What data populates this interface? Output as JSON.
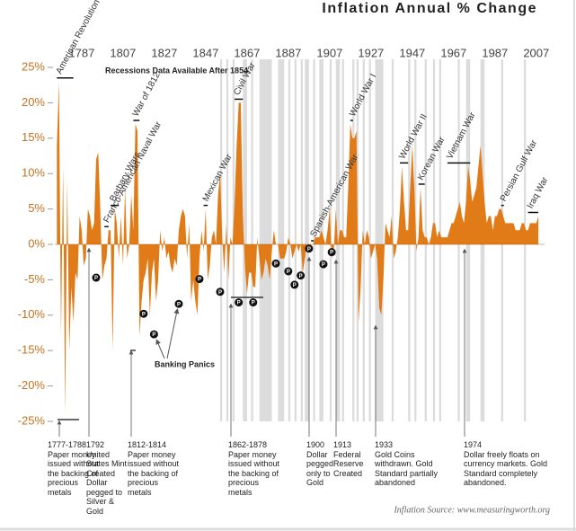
{
  "chart_data": {
    "type": "area",
    "title": "Inflation Annual % Change",
    "annotation": "Recessions Data Available After 1854",
    "source": "Inflation Source: www.measuringworth.org",
    "color": "#e07b17",
    "xlim": [
      1774,
      2011
    ],
    "ylim": [
      -25,
      25
    ],
    "xticks": [
      1787,
      1807,
      1827,
      1847,
      1867,
      1887,
      1907,
      1927,
      1947,
      1967,
      1987,
      2007
    ],
    "yticks": [
      {
        "value": 25,
        "label": "25%"
      },
      {
        "value": 20,
        "label": "20%"
      },
      {
        "value": 15,
        "label": "15%"
      },
      {
        "value": 10,
        "label": "10%"
      },
      {
        "value": 5,
        "label": "5%"
      },
      {
        "value": 0,
        "label": "0%"
      },
      {
        "value": -5,
        "label": "-5%"
      },
      {
        "value": -10,
        "label": "-10%"
      },
      {
        "value": -15,
        "label": "-15%"
      },
      {
        "value": -20,
        "label": "-20%"
      },
      {
        "value": -25,
        "label": "-25%"
      }
    ],
    "x": [
      1775,
      1776,
      1777,
      1778,
      1779,
      1780,
      1781,
      1782,
      1783,
      1784,
      1785,
      1786,
      1787,
      1788,
      1789,
      1790,
      1791,
      1792,
      1793,
      1794,
      1795,
      1796,
      1797,
      1798,
      1799,
      1800,
      1801,
      1802,
      1803,
      1804,
      1805,
      1806,
      1807,
      1808,
      1809,
      1810,
      1811,
      1812,
      1813,
      1814,
      1815,
      1816,
      1817,
      1818,
      1819,
      1820,
      1821,
      1822,
      1823,
      1824,
      1825,
      1826,
      1827,
      1828,
      1829,
      1830,
      1831,
      1832,
      1833,
      1834,
      1835,
      1836,
      1837,
      1838,
      1839,
      1840,
      1841,
      1842,
      1843,
      1844,
      1845,
      1846,
      1847,
      1848,
      1849,
      1850,
      1851,
      1852,
      1853,
      1854,
      1855,
      1856,
      1857,
      1858,
      1859,
      1860,
      1861,
      1862,
      1863,
      1864,
      1865,
      1866,
      1867,
      1868,
      1869,
      1870,
      1871,
      1872,
      1873,
      1874,
      1875,
      1876,
      1877,
      1878,
      1879,
      1880,
      1881,
      1882,
      1883,
      1884,
      1885,
      1886,
      1887,
      1888,
      1889,
      1890,
      1891,
      1892,
      1893,
      1894,
      1895,
      1896,
      1897,
      1898,
      1899,
      1900,
      1901,
      1902,
      1903,
      1904,
      1905,
      1906,
      1907,
      1908,
      1909,
      1910,
      1911,
      1912,
      1913,
      1914,
      1915,
      1916,
      1917,
      1918,
      1919,
      1920,
      1921,
      1922,
      1923,
      1924,
      1925,
      1926,
      1927,
      1928,
      1929,
      1930,
      1931,
      1932,
      1933,
      1934,
      1935,
      1936,
      1937,
      1938,
      1939,
      1940,
      1941,
      1942,
      1943,
      1944,
      1945,
      1946,
      1947,
      1948,
      1949,
      1950,
      1951,
      1952,
      1953,
      1954,
      1955,
      1956,
      1957,
      1958,
      1959,
      1960,
      1961,
      1962,
      1963,
      1964,
      1965,
      1966,
      1967,
      1968,
      1969,
      1970,
      1971,
      1972,
      1973,
      1974,
      1975,
      1976,
      1977,
      1978,
      1979,
      1980,
      1981,
      1982,
      1983,
      1984,
      1985,
      1986,
      1987,
      1988,
      1989,
      1990,
      1991,
      1992,
      1993,
      1994,
      1995,
      1996,
      1997,
      1998,
      1999,
      2000,
      2001,
      2002,
      2003,
      2004,
      2005,
      2006,
      2007,
      2008
    ],
    "values": [
      14,
      23,
      -13,
      11,
      -24,
      9,
      -15,
      -6,
      -11,
      -4,
      -5,
      4,
      2,
      -3,
      -2,
      5,
      4,
      2,
      3,
      12,
      13,
      5,
      -5,
      -3,
      -2,
      2,
      2,
      -15,
      5,
      3,
      -2,
      4,
      -3,
      8,
      -2,
      0,
      7,
      2,
      17,
      16,
      -13,
      -8,
      -5,
      -4,
      -2,
      -10,
      -4,
      -2,
      -8,
      -5,
      2,
      -1,
      1,
      -2,
      -1,
      -3,
      -4,
      -2,
      -3,
      2,
      4,
      5,
      4,
      -2,
      3,
      -8,
      -5,
      -8,
      -10,
      -2,
      2,
      -1,
      5,
      -5,
      -3,
      1,
      2,
      0,
      7,
      10,
      1,
      -4,
      3,
      -5,
      1,
      0,
      6,
      14,
      20,
      20,
      4,
      -3,
      -7,
      -4,
      -4,
      -6,
      -6,
      1,
      -2,
      -5,
      -4,
      -2,
      -3,
      -5,
      -1,
      2,
      0,
      0,
      -2,
      -2,
      -2,
      -1,
      1,
      0,
      -2,
      -1,
      0,
      -1,
      0,
      -4,
      -2,
      0,
      -1,
      0,
      0,
      1,
      1,
      1,
      2,
      1,
      0,
      2,
      5,
      -2,
      -1,
      5,
      0,
      2,
      2,
      1,
      1,
      8,
      17,
      15,
      15,
      16,
      -11,
      -6,
      2,
      0,
      2,
      1,
      -2,
      -1,
      0,
      -2,
      -9,
      -10,
      -5,
      3,
      2,
      1,
      4,
      -2,
      -1,
      1,
      5,
      11,
      6,
      2,
      2,
      8,
      14,
      8,
      -1,
      1,
      8,
      2,
      1,
      1,
      0,
      1,
      3,
      3,
      1,
      2,
      1,
      1,
      1,
      1,
      2,
      3,
      3,
      4,
      5,
      6,
      4,
      3,
      6,
      11,
      9,
      6,
      7,
      8,
      11,
      14,
      10,
      6,
      3,
      4,
      4,
      2,
      4,
      4,
      5,
      5,
      4,
      3,
      3,
      3,
      3,
      3,
      2,
      2,
      2,
      3,
      3,
      2,
      2,
      3,
      3,
      3,
      3,
      4
    ],
    "recessions": [
      [
        1854,
        1855
      ],
      [
        1857,
        1858
      ],
      [
        1860,
        1861
      ],
      [
        1865,
        1867
      ],
      [
        1869,
        1870
      ],
      [
        1873,
        1879
      ],
      [
        1882,
        1885
      ],
      [
        1887,
        1888
      ],
      [
        1890,
        1891
      ],
      [
        1893,
        1894
      ],
      [
        1895,
        1897
      ],
      [
        1899,
        1900
      ],
      [
        1902,
        1904
      ],
      [
        1907,
        1908
      ],
      [
        1910,
        1912
      ],
      [
        1913,
        1914
      ],
      [
        1918,
        1919
      ],
      [
        1920,
        1921
      ],
      [
        1923,
        1924
      ],
      [
        1926,
        1927
      ],
      [
        1929,
        1933
      ],
      [
        1937,
        1938
      ],
      [
        1945,
        1946
      ],
      [
        1948,
        1949
      ],
      [
        1953,
        1954
      ],
      [
        1957,
        1958
      ],
      [
        1960,
        1961
      ],
      [
        1969,
        1970
      ],
      [
        1973,
        1975
      ],
      [
        1980,
        1981
      ],
      [
        1981,
        1982
      ],
      [
        1990,
        1991
      ],
      [
        2001,
        2002
      ]
    ],
    "events": [
      {
        "label": "American Revolution",
        "start": 1775,
        "end": 1783
      },
      {
        "label": "Franco-American Naval War",
        "start": 1798,
        "end": 1800
      },
      {
        "label": "Barbary Wars",
        "start": 1801,
        "end": 1805
      },
      {
        "label": "War of 1812",
        "start": 1812,
        "end": 1815
      },
      {
        "label": "Mexican War",
        "start": 1846,
        "end": 1848
      },
      {
        "label": "Civil War",
        "start": 1861,
        "end": 1865
      },
      {
        "label": "Spanish-American War",
        "start": 1898,
        "end": 1899
      },
      {
        "label": "World War I",
        "start": 1917,
        "end": 1918
      },
      {
        "label": "World War II",
        "start": 1941,
        "end": 1945
      },
      {
        "label": "Korean War",
        "start": 1950,
        "end": 1953
      },
      {
        "label": "Vietnam War",
        "start": 1964,
        "end": 1975
      },
      {
        "label": "Persian Gulf War",
        "start": 1990,
        "end": 1991
      },
      {
        "label": "Iraq War",
        "start": 2003,
        "end": 2008
      }
    ],
    "panics": {
      "label": "Banking Panics",
      "symbol": "P",
      "x": [
        1794,
        1817,
        1822,
        1834,
        1844,
        1854,
        1863,
        1870,
        1881,
        1887,
        1890,
        1893,
        1897,
        1904,
        1908
      ],
      "y": [
        -4.7,
        -9.8,
        -12.7,
        -8.4,
        -4.9,
        -6.7,
        -8.2,
        -8.2,
        -2.7,
        -3.8,
        -5.7,
        -4.4,
        -0.6,
        -2.8,
        -1.1
      ]
    },
    "notes": [
      {
        "label": "1777-1788",
        "text": "Paper money issued without the backing of precious metals"
      },
      {
        "label": "1792",
        "text": "United States Mint Created Dollar pegged to Silver & Gold"
      },
      {
        "label": "1812-1814",
        "text": "Paper money issued without the backing of precious metals"
      },
      {
        "label": "1862-1878",
        "text": "Paper money issued without the backing of precious metals"
      },
      {
        "label": "1900",
        "text": "Dollar pegged only to Gold"
      },
      {
        "label": "1913",
        "text": "Federal Reserve Created"
      },
      {
        "label": "1933",
        "text": "Gold Coins withdrawn. Gold Standard partially abandoned"
      },
      {
        "label": "1974",
        "text": "Dollar freely floats on currency markets. Gold Standard completely abandoned."
      }
    ]
  }
}
